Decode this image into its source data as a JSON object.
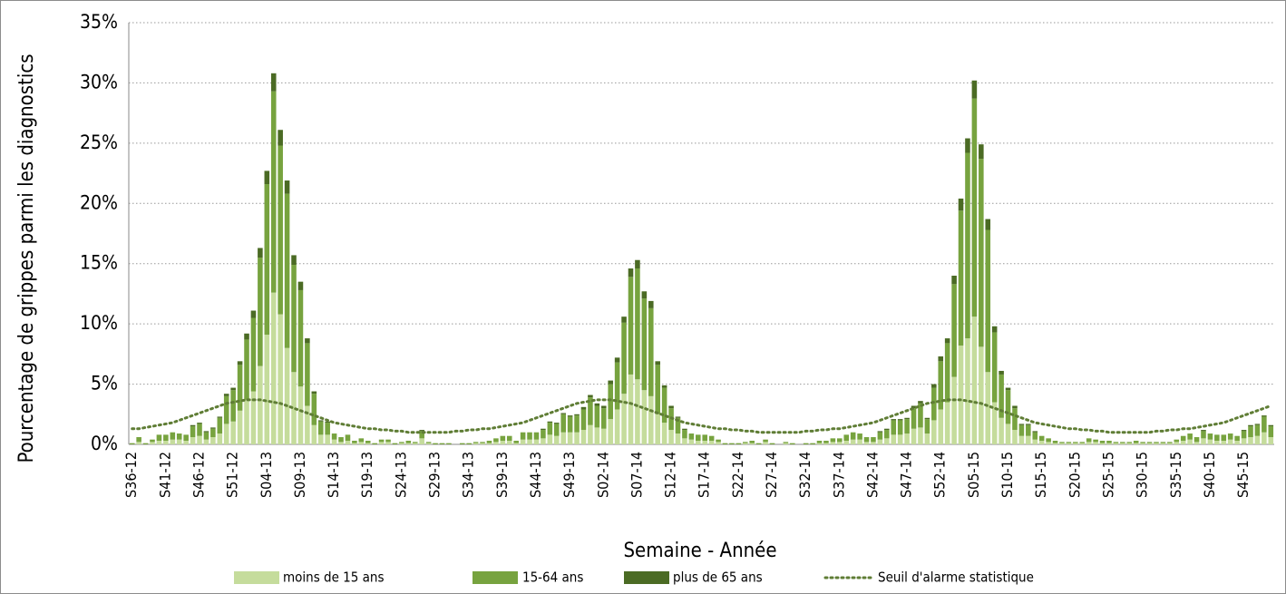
{
  "chart_data": {
    "type": "bar",
    "stacked": true,
    "x_label": "Semaine - Année",
    "y_label": "Pourcentage de grippes parmi les diagnostics",
    "ylim": [
      0,
      35
    ],
    "yticks": [
      {
        "value": 0,
        "label": "0%"
      },
      {
        "value": 5,
        "label": "5%"
      },
      {
        "value": 10,
        "label": "10%"
      },
      {
        "value": 15,
        "label": "15%"
      },
      {
        "value": 20,
        "label": "20%"
      },
      {
        "value": 25,
        "label": "25%"
      },
      {
        "value": 30,
        "label": "30%"
      },
      {
        "value": 35,
        "label": "35%"
      }
    ],
    "grid": true,
    "legend": "bottom",
    "categories": [
      "S36-12",
      null,
      null,
      null,
      null,
      "S41-12",
      null,
      null,
      null,
      null,
      "S46-12",
      null,
      null,
      null,
      null,
      "S51-12",
      null,
      null,
      null,
      null,
      "S04-13",
      null,
      null,
      null,
      null,
      "S09-13",
      null,
      null,
      null,
      null,
      "S14-13",
      null,
      null,
      null,
      null,
      "S19-13",
      null,
      null,
      null,
      null,
      "S24-13",
      null,
      null,
      null,
      null,
      "S29-13",
      null,
      null,
      null,
      null,
      "S34-13",
      null,
      null,
      null,
      null,
      "S39-13",
      null,
      null,
      null,
      null,
      "S44-13",
      null,
      null,
      null,
      null,
      "S49-13",
      null,
      null,
      null,
      null,
      "S02-14",
      null,
      null,
      null,
      null,
      "S07-14",
      null,
      null,
      null,
      null,
      "S12-14",
      null,
      null,
      null,
      null,
      "S17-14",
      null,
      null,
      null,
      null,
      "S22-14",
      null,
      null,
      null,
      null,
      "S27-14",
      null,
      null,
      null,
      null,
      "S32-14",
      null,
      null,
      null,
      null,
      "S37-14",
      null,
      null,
      null,
      null,
      "S42-14",
      null,
      null,
      null,
      null,
      "S47-14",
      null,
      null,
      null,
      null,
      "S52-14",
      null,
      null,
      null,
      null,
      "S05-15",
      null,
      null,
      null,
      null,
      "S10-15",
      null,
      null,
      null,
      null,
      "S15-15",
      null,
      null,
      null,
      null,
      "S20-15",
      null,
      null,
      null,
      null,
      "S25-15",
      null,
      null,
      null,
      null,
      "S30-15",
      null,
      null,
      null,
      null,
      "S35-15",
      null,
      null,
      null,
      null,
      "S40-15",
      null,
      null,
      null,
      null,
      "S45-15",
      null,
      null,
      null,
      null
    ],
    "series": [
      {
        "name": "moins de 15 ans",
        "color": "#c5dc9c",
        "values": [
          0.0,
          0.2,
          0.0,
          0.2,
          0.3,
          0.3,
          0.4,
          0.4,
          0.3,
          0.6,
          0.7,
          0.4,
          0.6,
          0.9,
          1.7,
          1.9,
          2.8,
          3.7,
          4.4,
          6.5,
          9.1,
          12.6,
          10.8,
          8.0,
          6.0,
          4.8,
          3.2,
          1.6,
          0.8,
          0.8,
          0.4,
          0.2,
          0.3,
          0.1,
          0.2,
          0.1,
          0,
          0.2,
          0.2,
          0,
          0.1,
          0.1,
          0.1,
          0.5,
          0.1,
          0,
          0,
          0,
          0,
          0,
          0,
          0.1,
          0.1,
          0.1,
          0.2,
          0.3,
          0.3,
          0.1,
          0.4,
          0.4,
          0.4,
          0.5,
          0.8,
          0.7,
          1.0,
          1.0,
          1.0,
          1.2,
          1.6,
          1.4,
          1.3,
          2.1,
          2.9,
          4.2,
          5.8,
          5.4,
          4.5,
          4.0,
          2.5,
          1.8,
          1.2,
          0.9,
          0.5,
          0.4,
          0.3,
          0.3,
          0.3,
          0.2,
          0,
          0,
          0,
          0.1,
          0.1,
          0,
          0.2,
          0,
          0,
          0.1,
          0,
          0,
          0,
          0,
          0.1,
          0.1,
          0.2,
          0.2,
          0.3,
          0.4,
          0.4,
          0.2,
          0.2,
          0.4,
          0.5,
          0.8,
          0.8,
          0.9,
          1.3,
          1.4,
          0.9,
          2.0,
          2.9,
          3.5,
          5.6,
          8.2,
          8.8,
          10.6,
          8.1,
          6.0,
          3.5,
          2.2,
          1.7,
          1.2,
          0.7,
          0.7,
          0.4,
          0.3,
          0.2,
          0.1,
          0.1,
          0.1,
          0.1,
          0.1,
          0.2,
          0.2,
          0.1,
          0.1,
          0.1,
          0.1,
          0.1,
          0.1,
          0.1,
          0.1,
          0.1,
          0.1,
          0.1,
          0.2,
          0.3,
          0.4,
          0.2,
          0.5,
          0.4,
          0.3,
          0.3,
          0.4,
          0.3,
          0.5,
          0.6,
          0.7,
          1.0,
          0.6
        ]
      },
      {
        "name": "15-64 ans",
        "color": "#77a33f",
        "values": [
          0.1,
          0.4,
          0.1,
          0.2,
          0.5,
          0.5,
          0.6,
          0.5,
          0.5,
          0.9,
          1.0,
          0.6,
          0.7,
          1.3,
          2.3,
          2.6,
          3.8,
          5.0,
          6.1,
          9.0,
          12.5,
          16.7,
          14.0,
          12.8,
          8.9,
          8.0,
          5.2,
          2.6,
          1.1,
          1.0,
          0.5,
          0.4,
          0.5,
          0.2,
          0.3,
          0.2,
          0.1,
          0.2,
          0.2,
          0.1,
          0.1,
          0.2,
          0.1,
          0.6,
          0.1,
          0.1,
          0.1,
          0.1,
          0,
          0.1,
          0.1,
          0.1,
          0.1,
          0.2,
          0.3,
          0.4,
          0.4,
          0.2,
          0.6,
          0.6,
          0.6,
          0.7,
          1.0,
          1.0,
          1.5,
          1.3,
          1.4,
          1.7,
          2.3,
          1.8,
          1.7,
          2.9,
          3.9,
          5.9,
          8.1,
          9.2,
          7.6,
          7.3,
          4.1,
          2.9,
          1.8,
          1.3,
          0.7,
          0.5,
          0.5,
          0.5,
          0.4,
          0.2,
          0.1,
          0.1,
          0.1,
          0.1,
          0.2,
          0.1,
          0.2,
          0.1,
          0,
          0.1,
          0.1,
          0,
          0.1,
          0.1,
          0.2,
          0.2,
          0.3,
          0.3,
          0.5,
          0.6,
          0.5,
          0.4,
          0.4,
          0.6,
          0.7,
          1.2,
          1.2,
          1.2,
          1.7,
          2.0,
          1.2,
          2.7,
          4.0,
          4.9,
          7.7,
          11.2,
          15.4,
          18.1,
          15.6,
          11.8,
          5.8,
          3.6,
          2.8,
          1.8,
          0.9,
          0.9,
          0.6,
          0.4,
          0.3,
          0.2,
          0.1,
          0.1,
          0.1,
          0.1,
          0.3,
          0.2,
          0.2,
          0.2,
          0.1,
          0.1,
          0.1,
          0.2,
          0.1,
          0.1,
          0.1,
          0.1,
          0.1,
          0.2,
          0.4,
          0.5,
          0.4,
          0.6,
          0.5,
          0.5,
          0.5,
          0.5,
          0.4,
          0.6,
          0.9,
          0.9,
          1.3,
          0.9
        ]
      },
      {
        "name": "plus de 65 ans",
        "color": "#4b6b24",
        "values": [
          0,
          0,
          0,
          0,
          0,
          0,
          0,
          0,
          0,
          0.1,
          0.1,
          0.1,
          0.1,
          0.1,
          0.2,
          0.2,
          0.3,
          0.5,
          0.6,
          0.8,
          1.1,
          1.5,
          1.3,
          1.1,
          0.8,
          0.7,
          0.4,
          0.2,
          0.1,
          0.1,
          0,
          0,
          0,
          0,
          0,
          0,
          0,
          0,
          0,
          0,
          0,
          0,
          0,
          0.1,
          0,
          0,
          0,
          0,
          0,
          0,
          0,
          0,
          0,
          0,
          0,
          0,
          0,
          0,
          0,
          0,
          0,
          0.1,
          0.1,
          0.1,
          0.1,
          0.1,
          0.1,
          0.2,
          0.2,
          0.2,
          0.2,
          0.3,
          0.4,
          0.5,
          0.7,
          0.7,
          0.6,
          0.6,
          0.3,
          0.2,
          0.2,
          0.1,
          0.1,
          0,
          0,
          0,
          0,
          0,
          0,
          0,
          0,
          0,
          0,
          0,
          0,
          0,
          0,
          0,
          0,
          0,
          0,
          0,
          0,
          0,
          0,
          0,
          0,
          0,
          0,
          0,
          0,
          0.1,
          0.1,
          0.1,
          0.1,
          0.1,
          0.2,
          0.2,
          0.1,
          0.3,
          0.4,
          0.4,
          0.7,
          1.0,
          1.2,
          1.5,
          1.2,
          0.9,
          0.5,
          0.3,
          0.2,
          0.2,
          0.1,
          0.1,
          0.1,
          0,
          0,
          0,
          0,
          0,
          0,
          0,
          0,
          0,
          0,
          0,
          0,
          0,
          0,
          0,
          0,
          0,
          0,
          0,
          0,
          0,
          0,
          0,
          0,
          0.1,
          0,
          0,
          0,
          0,
          0,
          0.1,
          0.1,
          0.1,
          0.1,
          0.1
        ]
      },
      {
        "name": "Seuil d'alarme statistique",
        "type": "line",
        "color": "#5f7d35",
        "values": [
          1.3,
          1.3,
          1.4,
          1.5,
          1.6,
          1.7,
          1.8,
          2.0,
          2.2,
          2.4,
          2.6,
          2.8,
          3.0,
          3.2,
          3.4,
          3.5,
          3.6,
          3.7,
          3.7,
          3.7,
          3.6,
          3.5,
          3.4,
          3.2,
          3.0,
          2.8,
          2.6,
          2.4,
          2.2,
          2.0,
          1.8,
          1.7,
          1.6,
          1.5,
          1.4,
          1.3,
          1.3,
          1.2,
          1.2,
          1.1,
          1.1,
          1.0,
          1.0,
          1.0,
          1.0,
          1.0,
          1.0,
          1.0,
          1.1,
          1.1,
          1.2,
          1.2,
          1.3,
          1.3,
          1.4,
          1.5,
          1.6,
          1.7,
          1.8,
          2.0,
          2.2,
          2.4,
          2.6,
          2.8,
          3.0,
          3.2,
          3.4,
          3.5,
          3.6,
          3.7,
          3.7,
          3.7,
          3.6,
          3.5,
          3.4,
          3.2,
          3.0,
          2.8,
          2.6,
          2.4,
          2.2,
          2.0,
          1.8,
          1.7,
          1.6,
          1.5,
          1.4,
          1.3,
          1.3,
          1.2,
          1.2,
          1.1,
          1.1,
          1.0,
          1.0,
          1.0,
          1.0,
          1.0,
          1.0,
          1.0,
          1.1,
          1.1,
          1.2,
          1.2,
          1.3,
          1.3,
          1.4,
          1.5,
          1.6,
          1.7,
          1.8,
          2.0,
          2.2,
          2.4,
          2.6,
          2.8,
          3.0,
          3.2,
          3.4,
          3.5,
          3.6,
          3.7,
          3.7,
          3.7,
          3.6,
          3.5,
          3.4,
          3.2,
          3.0,
          2.8,
          2.6,
          2.4,
          2.2,
          2.0,
          1.8,
          1.7,
          1.6,
          1.5,
          1.4,
          1.3,
          1.3,
          1.2,
          1.2,
          1.1,
          1.1,
          1.0,
          1.0,
          1.0,
          1.0,
          1.0,
          1.0,
          1.0,
          1.1,
          1.1,
          1.2,
          1.2,
          1.3,
          1.3,
          1.4,
          1.5,
          1.6,
          1.7,
          1.8,
          2.0,
          2.2,
          2.4,
          2.6,
          2.8,
          3.0,
          3.2
        ]
      }
    ]
  }
}
